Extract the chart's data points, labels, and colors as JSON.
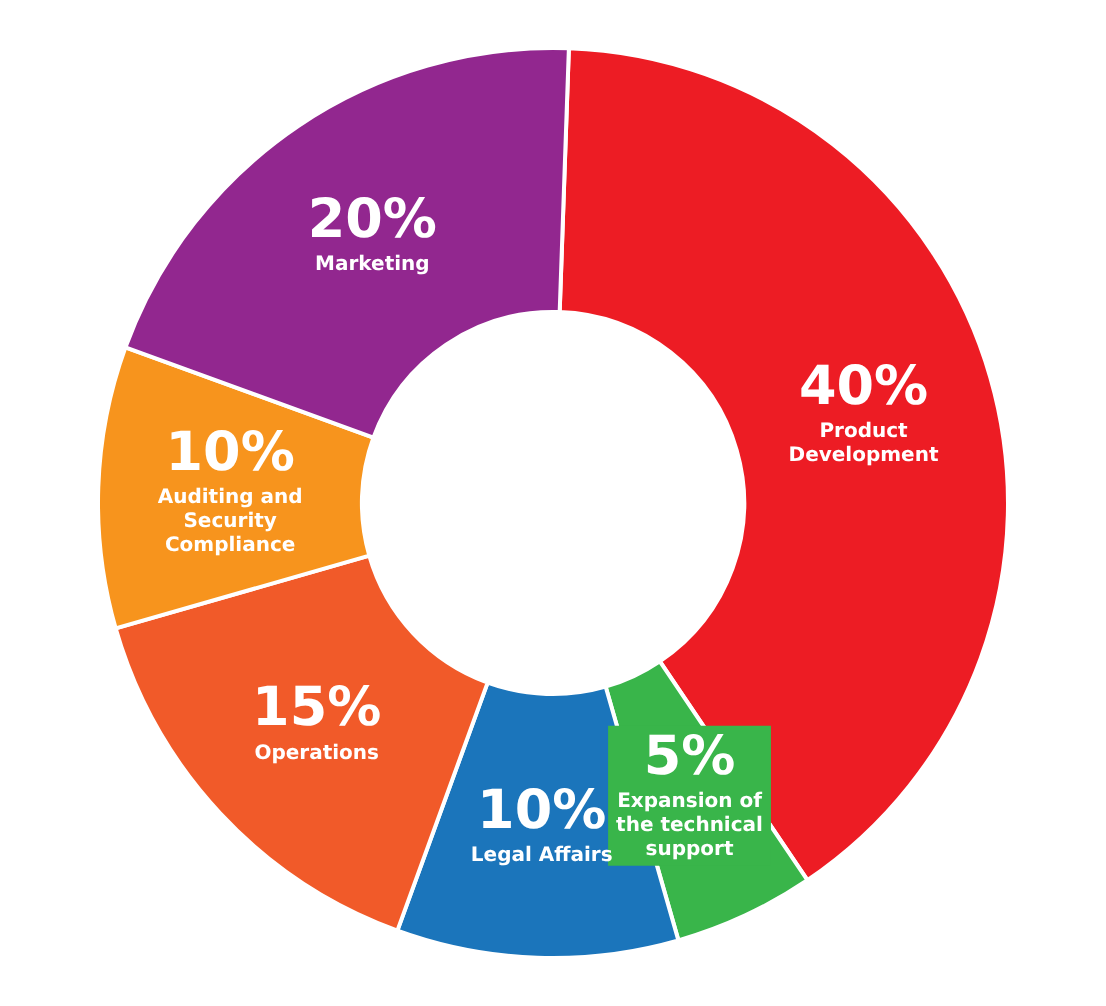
{
  "chart_data": {
    "type": "donut",
    "categories": [
      "Product Development",
      "Expansion of the technical support",
      "Legal Affairs",
      "Operations",
      "Auditing and Security Compliance",
      "Marketing"
    ],
    "values": [
      40,
      5,
      10,
      15,
      10,
      20
    ],
    "value_labels": [
      "40%",
      "5%",
      "10%",
      "15%",
      "10%",
      "20%"
    ],
    "colors": [
      "#ed1c24",
      "#39b54a",
      "#1b75bb",
      "#f15a29",
      "#f7941d",
      "#92278f"
    ],
    "legend": false
  }
}
